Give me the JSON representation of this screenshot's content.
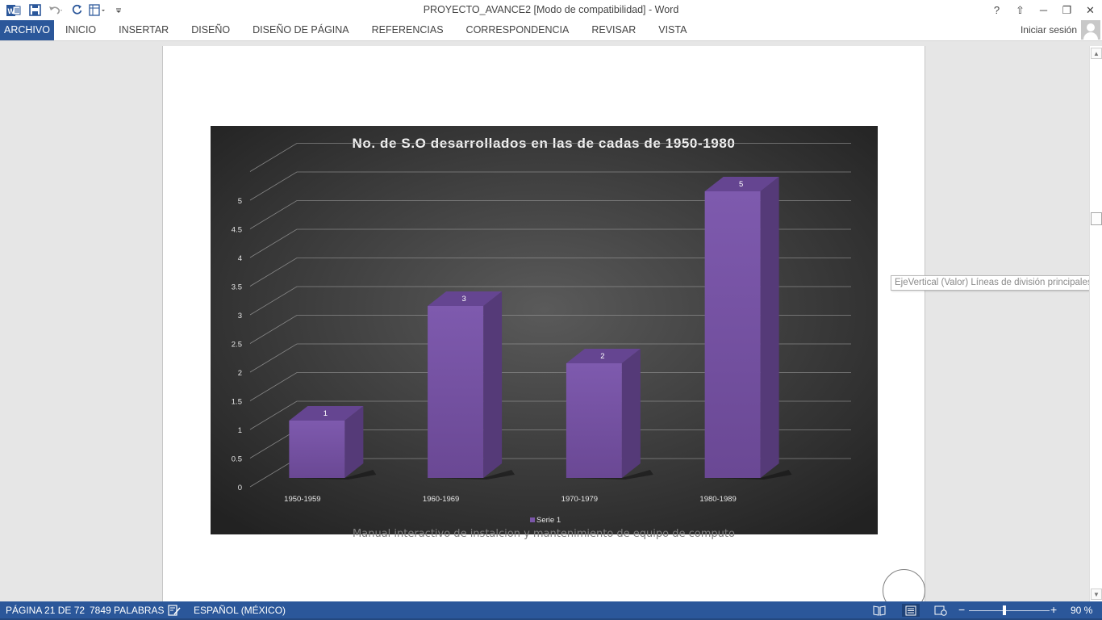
{
  "window": {
    "title": "PROYECTO_AVANCE2 [Modo de compatibilidad] - Word",
    "help_icon": "?",
    "ribbon_display_icon": "⇧",
    "minimize_icon": "─",
    "restore_icon": "❐",
    "close_icon": "✕"
  },
  "quick_access": {
    "word_logo": "W",
    "save_icon": "save-icon",
    "undo_icon": "undo-icon",
    "redo_icon": "redo-icon",
    "layout_icon": "table-icon",
    "customize_icon": "customize-icon"
  },
  "ribbon": {
    "tabs": [
      {
        "label": "ARCHIVO",
        "active": true
      },
      {
        "label": "INICIO"
      },
      {
        "label": "INSERTAR"
      },
      {
        "label": "DISEÑO"
      },
      {
        "label": "DISEÑO DE PÁGINA"
      },
      {
        "label": "REFERENCIAS"
      },
      {
        "label": "CORRESPONDENCIA"
      },
      {
        "label": "REVISAR"
      },
      {
        "label": "VISTA"
      }
    ],
    "signin": "Iniciar sesión"
  },
  "colors": {
    "accent": "#2b579a",
    "bar_front": "#7a56a8",
    "bar_side": "#553a78",
    "bar_top": "#654591",
    "chart_bg_center": "#5a5a5a",
    "chart_bg_edge": "#222222"
  },
  "chart_data": {
    "type": "bar",
    "title": "No. de S.O desarrollados en las de cadas de 1950-1980",
    "categories": [
      "1950-1959",
      "1960-1969",
      "1970-1979",
      "1980-1989"
    ],
    "series": [
      {
        "name": "Serie 1",
        "values": [
          1,
          3,
          2,
          5
        ]
      }
    ],
    "data_labels": [
      "1",
      "3",
      "2",
      "5"
    ],
    "y_ticks": [
      "0",
      "0.5",
      "1",
      "1.5",
      "2",
      "2.5",
      "3",
      "3.5",
      "4",
      "4.5",
      "5"
    ],
    "ylim": [
      0,
      5.5
    ],
    "grid": true,
    "legend": "bottom",
    "three_d": true
  },
  "document": {
    "footer_text": "Manual interactivo de instalcion y mantenimiento de equipo de computo"
  },
  "tooltip": {
    "text": "EjeVertical (Valor)  Líneas de división principales"
  },
  "status": {
    "page": "PÁGINA 21 DE 72",
    "words": "7849 PALABRAS",
    "proofing_icon": "proofing-icon",
    "language": "ESPAÑOL (MÉXICO)",
    "zoom_out": "−",
    "zoom_in": "+",
    "zoom": "90 %"
  }
}
